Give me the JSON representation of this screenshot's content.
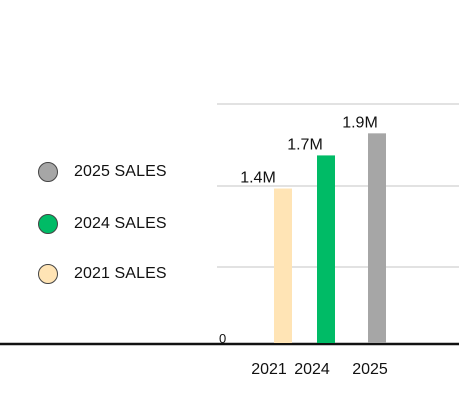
{
  "chart_data": {
    "type": "bar",
    "categories": [
      "2021",
      "2024",
      "2025"
    ],
    "values": [
      1.4,
      1.7,
      1.9
    ],
    "data_labels": [
      "1.4M",
      "1.7M",
      "1.9M"
    ],
    "bar_colors": [
      "#FFE4B5",
      "#00BB66",
      "#A6A6A6"
    ],
    "legend": [
      {
        "label": "2025 SALES",
        "color": "#A6A6A6"
      },
      {
        "label": "2024 SALES",
        "color": "#00BB66"
      },
      {
        "label": "2021 SALES",
        "color": "#FFE4B5"
      }
    ],
    "legend_placement": "left",
    "y_tick_labels": [
      "0"
    ],
    "ylim": [
      0,
      2.9
    ],
    "grid": true,
    "title": "",
    "xlabel": "",
    "ylabel": ""
  }
}
